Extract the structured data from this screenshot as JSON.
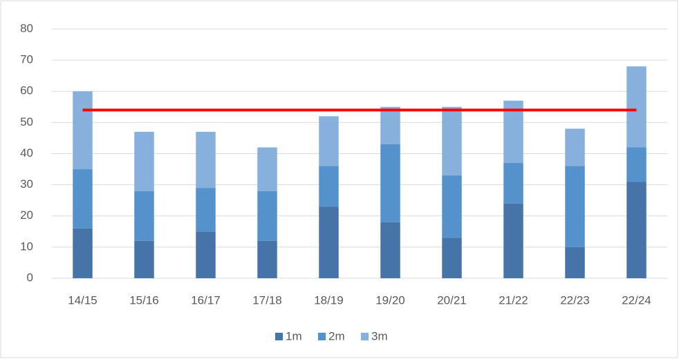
{
  "chart_data": {
    "type": "stacked_bar",
    "categories": [
      "14/15",
      "15/16",
      "16/17",
      "17/18",
      "18/19",
      "19/20",
      "20/21",
      "21/22",
      "22/23",
      "22/24"
    ],
    "series": [
      {
        "name": "1m",
        "color": "#4674a8",
        "values": [
          16,
          12,
          15,
          12,
          23,
          18,
          13,
          24,
          10,
          31
        ]
      },
      {
        "name": "2m",
        "color": "#5592cb",
        "values": [
          19,
          16,
          14,
          16,
          13,
          25,
          20,
          13,
          26,
          11
        ]
      },
      {
        "name": "3m",
        "color": "#87b0dc",
        "values": [
          25,
          19,
          18,
          14,
          16,
          12,
          22,
          20,
          12,
          26
        ]
      },
      {
        "type": "line",
        "color": "#ff0000",
        "values": [
          54,
          54,
          54,
          54,
          54,
          54,
          54,
          54,
          54,
          54
        ]
      }
    ],
    "ylim": [
      0,
      80
    ],
    "yticks": [
      0,
      10,
      20,
      30,
      40,
      50,
      60,
      70,
      80
    ],
    "grid": true,
    "legend": "bottom"
  }
}
